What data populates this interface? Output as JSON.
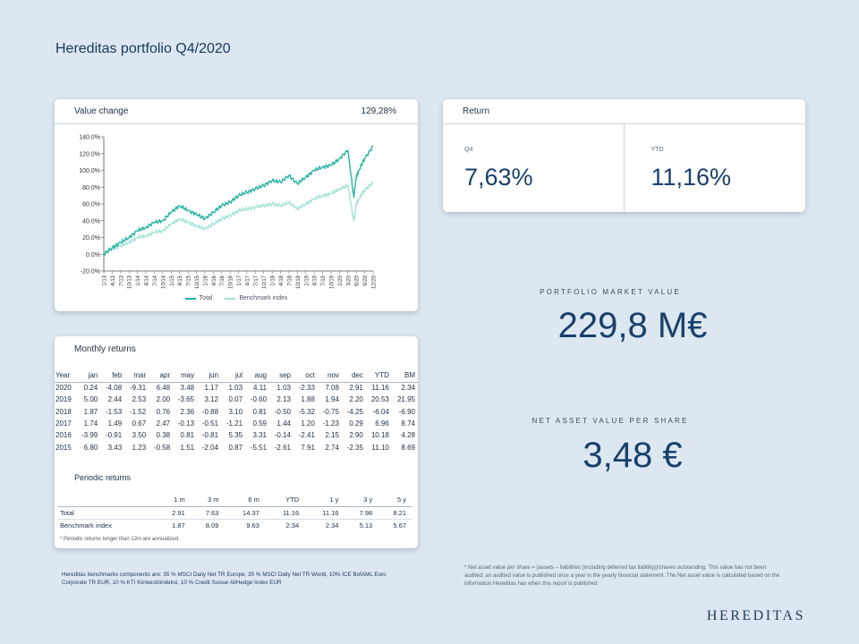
{
  "page_title": "Hereditas portfolio Q4/2020",
  "value_change": {
    "title": "Value change",
    "total": "129,28%"
  },
  "chart_data": {
    "type": "line",
    "title": "",
    "xlabel": "",
    "ylabel": "",
    "ylim": [
      -20,
      140
    ],
    "yticks": [
      "140.0%",
      "120.0%",
      "100.0%",
      "80.0%",
      "60.0%",
      "40.0%",
      "20.0%",
      "0.0%",
      "-20.0%"
    ],
    "ytick_values": [
      140,
      120,
      100,
      80,
      60,
      40,
      20,
      0,
      -20
    ],
    "xticks": [
      "1/13",
      "4/13",
      "7/13",
      "10/13",
      "1/14",
      "4/14",
      "7/14",
      "10/14",
      "1/15",
      "4/15",
      "7/15",
      "10/15",
      "1/16",
      "4/16",
      "7/16",
      "10/16",
      "1/17",
      "4/17",
      "7/17",
      "10/17",
      "1/18",
      "4/18",
      "7/18",
      "10/18",
      "1/19",
      "4/19",
      "7/19",
      "10/19",
      "1/20",
      "3/20",
      "6/20",
      "9/20",
      "12/20"
    ],
    "x": [
      0,
      1,
      2,
      3,
      4,
      5,
      6,
      7,
      8,
      9,
      10,
      11,
      12,
      13,
      14,
      15,
      16,
      17,
      18,
      19,
      20,
      21,
      22,
      23,
      24,
      25,
      26,
      27,
      28,
      29,
      29.7,
      30,
      30.3,
      31,
      32
    ],
    "series": [
      {
        "name": "Total",
        "color": "#23b3a3",
        "values": [
          0,
          8,
          14,
          20,
          28,
          32,
          38,
          40,
          50,
          58,
          52,
          48,
          42,
          50,
          58,
          62,
          70,
          74,
          78,
          82,
          88,
          86,
          94,
          84,
          92,
          100,
          104,
          106,
          114,
          124,
          68,
          92,
          100,
          114,
          129
        ]
      },
      {
        "name": "Benchmark index",
        "color": "#9fe3d6",
        "values": [
          0,
          6,
          10,
          14,
          20,
          22,
          26,
          28,
          36,
          42,
          38,
          34,
          30,
          36,
          42,
          46,
          52,
          54,
          56,
          58,
          60,
          58,
          62,
          54,
          60,
          66,
          70,
          72,
          78,
          82,
          40,
          60,
          66,
          76,
          86
        ]
      }
    ],
    "legend": "bottom"
  },
  "return_card": {
    "title": "Return",
    "q4_label": "Q4",
    "q4_value": "7,63%",
    "ytd_label": "YTD",
    "ytd_value": "11,16%"
  },
  "market_value": {
    "label": "PORTFOLIO MARKET VALUE",
    "value": "229,8 M€"
  },
  "nav": {
    "label": "NET ASSET VALUE PER SHARE",
    "value": "3,48 €"
  },
  "monthly": {
    "title": "Monthly returns",
    "headers": [
      "Year",
      "jan",
      "feb",
      "mar",
      "apr",
      "may",
      "jun",
      "jul",
      "aug",
      "sep",
      "oct",
      "nov",
      "dec",
      "YTD",
      "BM"
    ],
    "rows": [
      [
        "2020",
        "0.24",
        "-4.08",
        "-9.31",
        "6.48",
        "3.48",
        "1.17",
        "1.03",
        "4.11",
        "1.03",
        "-2.33",
        "7.08",
        "2.91",
        "11.16",
        "2.34"
      ],
      [
        "2019",
        "5.00",
        "2.44",
        "2.53",
        "2.00",
        "-3.65",
        "3.12",
        "0.07",
        "-0.60",
        "2.13",
        "1.88",
        "1.94",
        "2.20",
        "20.53",
        "21.95"
      ],
      [
        "2018",
        "1.87",
        "-1.53",
        "-1.52",
        "0.76",
        "2.36",
        "-0.88",
        "3.10",
        "0.81",
        "-0.50",
        "-5.32",
        "-0.75",
        "-4.25",
        "-6.04",
        "-6.90"
      ],
      [
        "2017",
        "1.74",
        "1.49",
        "0.67",
        "2.47",
        "-0.13",
        "-0.51",
        "-1.21",
        "0.59",
        "1.44",
        "1.20",
        "-1.23",
        "0.29",
        "6.96",
        "8.74"
      ],
      [
        "2016",
        "-3.99",
        "-0.91",
        "3.50",
        "0.38",
        "0.81",
        "-0.81",
        "5.35",
        "3.31",
        "-0.14",
        "-2.41",
        "2.15",
        "2.90",
        "10.18",
        "4.28"
      ],
      [
        "2015",
        "6.80",
        "3.43",
        "1.23",
        "-0.58",
        "1.51",
        "-2.04",
        "0.87",
        "-5.51",
        "-2.61",
        "7.91",
        "2.74",
        "-2.35",
        "11.10",
        "8.69"
      ]
    ]
  },
  "periodic": {
    "title": "Periodic returns",
    "headers": [
      "",
      "1 m",
      "3 m",
      "6 m",
      "YTD",
      "1 y",
      "3 y",
      "5 y"
    ],
    "rows": [
      [
        "Total",
        "2.91",
        "7.63",
        "14.37",
        "11.16",
        "11.16",
        "7.98",
        "8.21"
      ],
      [
        "Benchmark index",
        "1.87",
        "8.09",
        "9.63",
        "2.34",
        "2.34",
        "5.13",
        "5.67"
      ]
    ],
    "note": "* Periodic returns longer than 12m are annualized."
  },
  "footer_left": "Hereditas benchmarks components are: 35 % MSCI Daily Net TR Europe, 35 % MSCI Daily Net TR World, 10% ICE BofAML Euro Corporate TR EUR, 10 % KTI Kiinteistöindeksi, 10 % Credit Suisse AllHedge Index EUR",
  "footer_right": "* Net asset value per share = (assets – liabilities (including deferred tax liability))/shares outstanding. This value has not been audited; an audited value is published once a year in the yearly financial statement. The Net asset value is calculated based on the information Hereditas has when this report is published.",
  "brand": "HEREDITAS"
}
